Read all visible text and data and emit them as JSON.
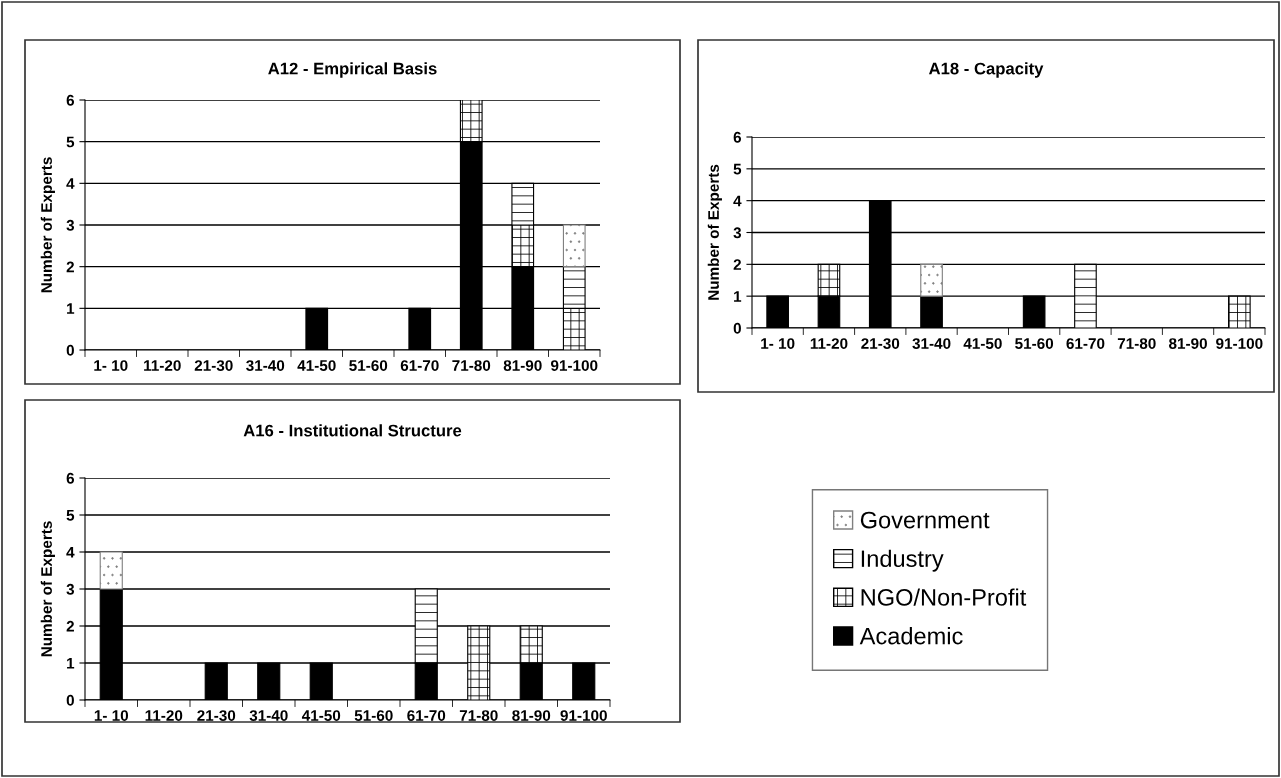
{
  "chart_data": [
    {
      "type": "bar",
      "title": "A12 - Empirical Basis",
      "ylabel": "Number of Experts",
      "stacked": true,
      "grid": "y",
      "legend": "right",
      "categories": [
        "1- 10",
        "11-20",
        "21-30",
        "31-40",
        "41-50",
        "51-60",
        "61-70",
        "71-80",
        "81-90",
        "91-100"
      ],
      "ylim": [
        0,
        6
      ],
      "yticks": [
        0,
        1,
        2,
        3,
        4,
        5,
        6
      ],
      "series": [
        {
          "name": "Academic",
          "color": "#000000",
          "values": [
            0,
            0,
            0,
            0,
            1,
            0,
            1,
            5,
            2,
            0
          ]
        },
        {
          "name": "NGO/Non-Profit",
          "color": "#000000",
          "values": [
            0,
            0,
            0,
            0,
            0,
            0,
            0,
            1,
            1,
            1
          ]
        },
        {
          "name": "Industry",
          "color": "#000000",
          "values": [
            0,
            0,
            0,
            0,
            0,
            0,
            0,
            0,
            1,
            1
          ]
        },
        {
          "name": "Government",
          "color": "#808080",
          "values": [
            0,
            0,
            0,
            0,
            0,
            0,
            0,
            0,
            0,
            1
          ]
        }
      ]
    },
    {
      "type": "bar",
      "title": "A18 - Capacity",
      "ylabel": "Number of Experts",
      "stacked": true,
      "grid": "y",
      "legend": "right",
      "categories": [
        "1- 10",
        "11-20",
        "21-30",
        "31-40",
        "41-50",
        "51-60",
        "61-70",
        "71-80",
        "81-90",
        "91-100"
      ],
      "ylim": [
        0,
        6
      ],
      "yticks": [
        0,
        1,
        2,
        3,
        4,
        5,
        6
      ],
      "series": [
        {
          "name": "Academic",
          "color": "#000000",
          "values": [
            1,
            1,
            4,
            1,
            0,
            1,
            0,
            0,
            0,
            0
          ]
        },
        {
          "name": "NGO/Non-Profit",
          "color": "#000000",
          "values": [
            0,
            1,
            0,
            0,
            0,
            0,
            0,
            0,
            0,
            1
          ]
        },
        {
          "name": "Industry",
          "color": "#000000",
          "values": [
            0,
            0,
            0,
            0,
            0,
            0,
            2,
            0,
            0,
            0
          ]
        },
        {
          "name": "Government",
          "color": "#808080",
          "values": [
            0,
            0,
            0,
            1,
            0,
            0,
            0,
            0,
            0,
            0
          ]
        }
      ]
    },
    {
      "type": "bar",
      "title": "A16 - Institutional Structure",
      "ylabel": "Number of Experts",
      "stacked": true,
      "grid": "y",
      "legend": "right",
      "categories": [
        "1- 10",
        "11-20",
        "21-30",
        "31-40",
        "41-50",
        "51-60",
        "61-70",
        "71-80",
        "81-90",
        "91-100"
      ],
      "ylim": [
        0,
        6
      ],
      "yticks": [
        0,
        1,
        2,
        3,
        4,
        5,
        6
      ],
      "series": [
        {
          "name": "Academic",
          "color": "#000000",
          "values": [
            3,
            0,
            1,
            1,
            1,
            0,
            1,
            0,
            1,
            1
          ]
        },
        {
          "name": "NGO/Non-Profit",
          "color": "#000000",
          "values": [
            0,
            0,
            0,
            0,
            0,
            0,
            0,
            2,
            1,
            0
          ]
        },
        {
          "name": "Industry",
          "color": "#000000",
          "values": [
            0,
            0,
            0,
            0,
            0,
            0,
            2,
            0,
            0,
            0
          ]
        },
        {
          "name": "Government",
          "color": "#808080",
          "values": [
            1,
            0,
            0,
            0,
            0,
            0,
            0,
            0,
            0,
            0
          ]
        }
      ]
    }
  ]
}
